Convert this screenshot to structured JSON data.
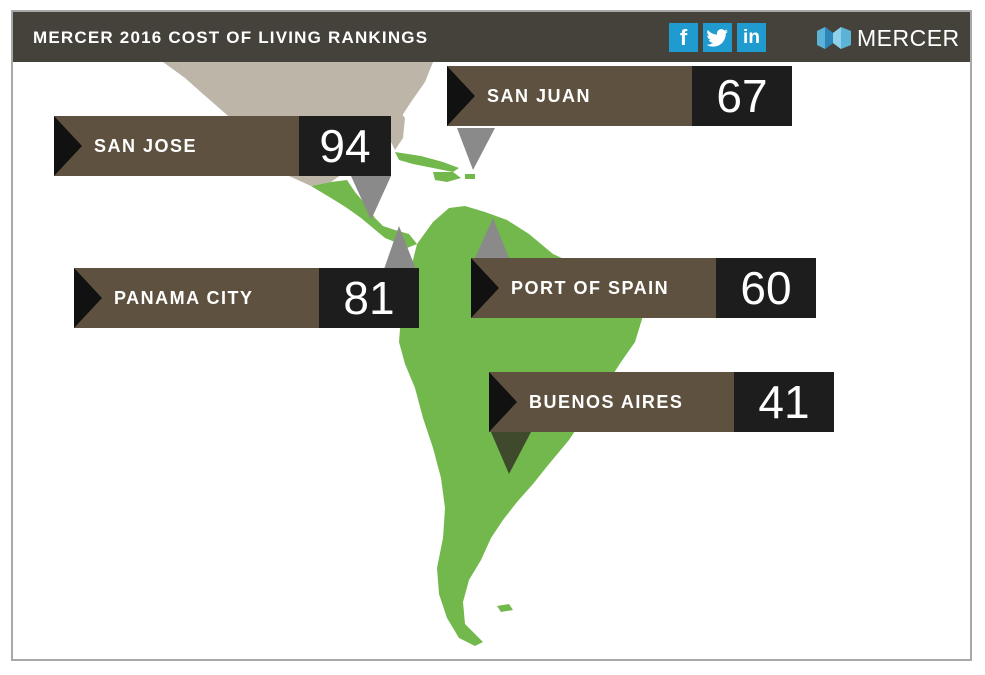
{
  "header": {
    "title": "MERCER 2016 COST OF LIVING RANKINGS",
    "brand": "MERCER",
    "social": [
      {
        "name": "facebook",
        "glyph": "f"
      },
      {
        "name": "twitter",
        "glyph": "twitter-bird"
      },
      {
        "name": "linkedin",
        "glyph": "in"
      }
    ]
  },
  "colors": {
    "header_bg": "#45423b",
    "social_bg": "#1f9bd0",
    "land_latin_america": "#73b84c",
    "land_north_america": "#bdb5a8",
    "label_name_bg": "#5e513f",
    "label_rank_bg": "#1d1d1d"
  },
  "cities": [
    {
      "name": "SAN JUAN",
      "rank": "67"
    },
    {
      "name": "SAN JOSE",
      "rank": "94"
    },
    {
      "name": "PANAMA CITY",
      "rank": "81"
    },
    {
      "name": "PORT OF SPAIN",
      "rank": "60"
    },
    {
      "name": "BUENOS AIRES",
      "rank": "41"
    }
  ]
}
